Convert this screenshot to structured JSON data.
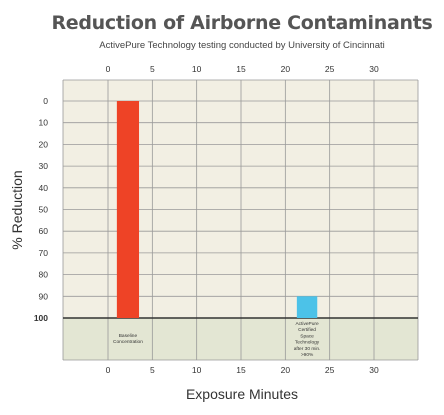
{
  "chart_data": {
    "type": "bar",
    "title": "Reduction of Airborne Contaminants",
    "subtitle": "ActivePure Technology testing conducted by University of Cincinnati",
    "xlabel": "Exposure Minutes",
    "ylabel": "% Reduction",
    "xlim": [
      -5,
      35
    ],
    "ylim": [
      0,
      100
    ],
    "y_inverted": true,
    "x_ticks": [
      0,
      5,
      10,
      15,
      20,
      25,
      30
    ],
    "x_ticks_bottom": [
      0,
      5,
      10,
      15,
      20,
      25,
      30
    ],
    "y_ticks": [
      0,
      10,
      20,
      30,
      40,
      50,
      60,
      70,
      80,
      90,
      100
    ],
    "grid": true,
    "bars": [
      {
        "x_start": 1,
        "x_end": 3.5,
        "value": 0,
        "label": "Baseline Concentration",
        "color": "#ee4326"
      },
      {
        "x_start": 21.3,
        "x_end": 23.6,
        "value": 90,
        "label": "ActivePure Certified Space Technology after 30 min. >90%",
        "color": "#4cc2e8"
      }
    ],
    "colors": {
      "plot_background": "#f2efe3",
      "label_band": "#e3e6d3",
      "grid": "#999999",
      "baseline": "#333333"
    }
  }
}
